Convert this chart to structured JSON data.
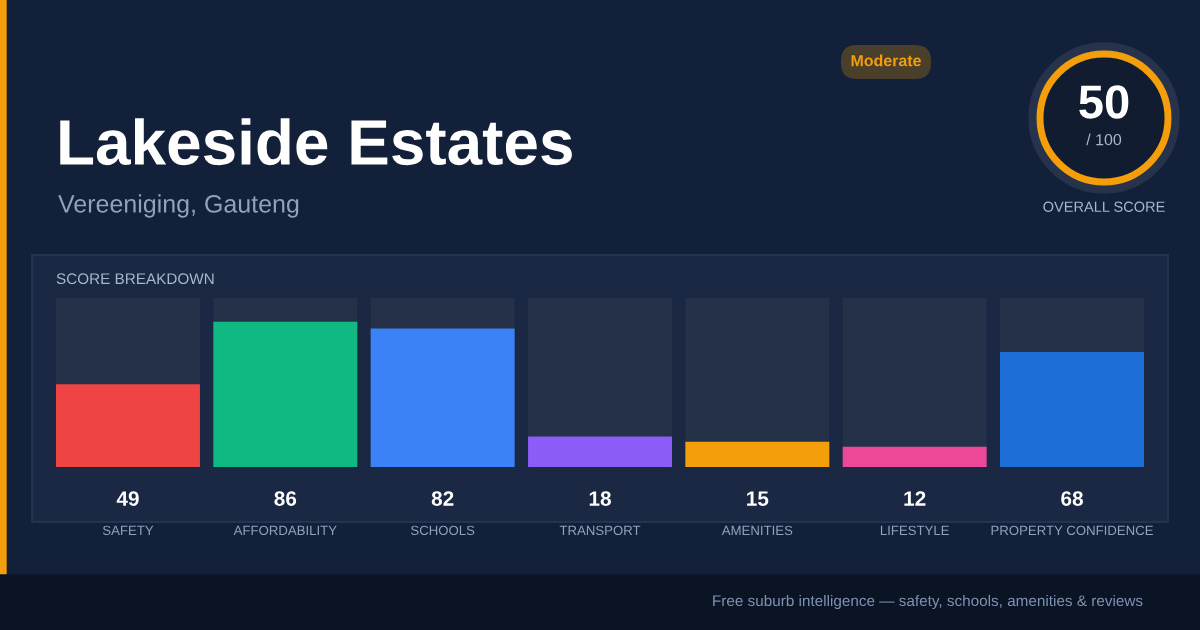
{
  "chart_data": {
    "type": "bar",
    "title": "Lakeside Estates",
    "subtitle": "Vereeniging, Gauteng",
    "categories": [
      "SAFETY",
      "AFFORDABILITY",
      "SCHOOLS",
      "TRANSPORT",
      "AMENITIES",
      "LIFESTYLE",
      "PROPERTY CONFIDENCE"
    ],
    "values": [
      49,
      86,
      82,
      18,
      15,
      12,
      68
    ],
    "colors": [
      "#ef4444",
      "#10b981",
      "#3b82f6",
      "#8b5cf6",
      "#f59e0b",
      "#ec4899",
      "#1d6fd8"
    ],
    "ylim": [
      0,
      100
    ],
    "tick_labels": "x",
    "data_labels": true,
    "grid": false,
    "legend": false,
    "annotations": [
      "SCORE BREAKDOWN",
      "Moderate",
      "50",
      "/ 100",
      "OVERALL SCORE",
      "Free suburb intelligence — safety, schools, amenities & reviews"
    ]
  }
}
